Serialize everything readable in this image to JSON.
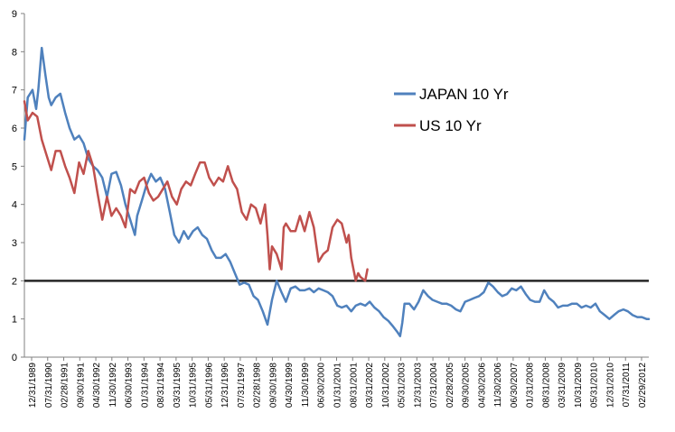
{
  "chart_data": {
    "type": "line",
    "title": "",
    "xlabel": "",
    "ylabel": "",
    "ylim": [
      0,
      9
    ],
    "yticks": [
      0,
      1,
      2,
      3,
      4,
      5,
      6,
      7,
      8,
      9
    ],
    "x_tick_labels": [
      "12/31/1989",
      "07/31/1990",
      "02/28/1991",
      "09/30/1991",
      "04/30/1992",
      "11/30/1992",
      "06/30/1993",
      "01/31/1994",
      "08/31/1994",
      "03/31/1995",
      "10/31/1995",
      "05/31/1996",
      "12/31/1996",
      "07/31/1997",
      "02/28/1998",
      "09/30/1998",
      "04/30/1999",
      "11/30/1999",
      "06/30/2000",
      "01/31/2001",
      "08/31/2001",
      "03/31/2002",
      "10/31/2002",
      "05/31/2003",
      "12/31/2003",
      "07/31/2004",
      "02/28/2005",
      "09/30/2005",
      "04/30/2006",
      "11/30/2006",
      "06/30/2007",
      "01/31/2008",
      "08/31/2008",
      "03/31/2009",
      "10/31/2009",
      "05/31/2010",
      "12/31/2010",
      "07/31/2011",
      "02/29/2012"
    ],
    "grid": false,
    "legend_position": "top-right",
    "reference_line": {
      "y": 2.0,
      "color": "#262626"
    },
    "series": [
      {
        "name": "JAPAN 10 Yr",
        "color": "#4f81bd",
        "x": [
          1989.96,
          1990.08,
          1990.25,
          1990.38,
          1990.46,
          1990.58,
          1990.71,
          1990.83,
          1990.92,
          1991.08,
          1991.25,
          1991.42,
          1991.58,
          1991.75,
          1991.92,
          1992.08,
          1992.25,
          1992.42,
          1992.58,
          1992.75,
          1992.92,
          1993.08,
          1993.25,
          1993.42,
          1993.58,
          1993.75,
          1993.92,
          1994.0,
          1994.17,
          1994.33,
          1994.5,
          1994.67,
          1994.83,
          1995.0,
          1995.17,
          1995.33,
          1995.5,
          1995.67,
          1995.83,
          1996.0,
          1996.17,
          1996.33,
          1996.5,
          1996.67,
          1996.83,
          1997.0,
          1997.17,
          1997.33,
          1997.5,
          1997.67,
          1997.83,
          1998.0,
          1998.17,
          1998.33,
          1998.5,
          1998.67,
          1998.83,
          1999.0,
          1999.17,
          1999.33,
          1999.5,
          1999.67,
          1999.83,
          2000.0,
          2000.17,
          2000.33,
          2000.5,
          2000.67,
          2000.83,
          2001.0,
          2001.17,
          2001.33,
          2001.5,
          2001.67,
          2001.83,
          2002.0,
          2002.17,
          2002.33,
          2002.5,
          2002.67,
          2002.83,
          2003.0,
          2003.17,
          2003.33,
          2003.42,
          2003.5,
          2003.58,
          2003.75,
          2003.92,
          2004.08,
          2004.25,
          2004.42,
          2004.58,
          2004.75,
          2004.92,
          2005.08,
          2005.25,
          2005.42,
          2005.58,
          2005.75,
          2005.92,
          2006.08,
          2006.25,
          2006.42,
          2006.58,
          2006.75,
          2006.92,
          2007.08,
          2007.25,
          2007.42,
          2007.58,
          2007.75,
          2007.92,
          2008.08,
          2008.25,
          2008.42,
          2008.58,
          2008.75,
          2008.92,
          2009.08,
          2009.25,
          2009.42,
          2009.58,
          2009.75,
          2009.92,
          2010.08,
          2010.25,
          2010.42,
          2010.58,
          2010.75,
          2010.92,
          2011.08,
          2011.25,
          2011.42,
          2011.58,
          2011.75,
          2011.92,
          2012.08,
          2012.25,
          2012.33
        ],
        "values": [
          5.7,
          6.8,
          7.0,
          6.5,
          7.0,
          8.1,
          7.4,
          6.8,
          6.6,
          6.8,
          6.9,
          6.4,
          6.0,
          5.7,
          5.8,
          5.6,
          5.2,
          5.0,
          4.9,
          4.7,
          4.2,
          4.8,
          4.85,
          4.5,
          4.0,
          3.6,
          3.2,
          3.7,
          4.1,
          4.5,
          4.8,
          4.6,
          4.7,
          4.4,
          3.8,
          3.2,
          3.0,
          3.3,
          3.1,
          3.3,
          3.4,
          3.2,
          3.1,
          2.8,
          2.6,
          2.6,
          2.7,
          2.5,
          2.2,
          1.9,
          1.95,
          1.9,
          1.6,
          1.5,
          1.2,
          0.85,
          1.5,
          2.0,
          1.7,
          1.45,
          1.8,
          1.85,
          1.75,
          1.75,
          1.8,
          1.7,
          1.8,
          1.75,
          1.7,
          1.6,
          1.35,
          1.3,
          1.35,
          1.2,
          1.35,
          1.4,
          1.35,
          1.45,
          1.3,
          1.2,
          1.05,
          0.95,
          0.8,
          0.65,
          0.55,
          0.9,
          1.4,
          1.4,
          1.25,
          1.45,
          1.75,
          1.6,
          1.5,
          1.45,
          1.4,
          1.4,
          1.35,
          1.25,
          1.2,
          1.45,
          1.5,
          1.55,
          1.6,
          1.7,
          1.95,
          1.85,
          1.7,
          1.6,
          1.65,
          1.8,
          1.75,
          1.85,
          1.65,
          1.5,
          1.45,
          1.45,
          1.75,
          1.55,
          1.45,
          1.3,
          1.35,
          1.35,
          1.4,
          1.4,
          1.3,
          1.35,
          1.3,
          1.4,
          1.2,
          1.1,
          1.0,
          1.1,
          1.2,
          1.25,
          1.2,
          1.1,
          1.05,
          1.05,
          1.0,
          1.0
        ]
      },
      {
        "name": "US 10 Yr",
        "color": "#c0504d",
        "x": [
          1989.96,
          1990.08,
          1990.25,
          1990.42,
          1990.58,
          1990.75,
          1990.92,
          1991.08,
          1991.25,
          1991.42,
          1991.58,
          1991.75,
          1991.92,
          1992.08,
          1992.25,
          1992.42,
          1992.58,
          1992.75,
          1992.92,
          1993.08,
          1993.25,
          1993.42,
          1993.58,
          1993.75,
          1993.92,
          1994.08,
          1994.25,
          1994.42,
          1994.58,
          1994.75,
          1994.92,
          1995.08,
          1995.25,
          1995.42,
          1995.58,
          1995.75,
          1995.92,
          1996.08,
          1996.25,
          1996.42,
          1996.58,
          1996.75,
          1996.92,
          1997.08,
          1997.25,
          1997.42,
          1997.58,
          1997.75,
          1997.92,
          1998.08,
          1998.25,
          1998.42,
          1998.58,
          1998.67,
          1998.75,
          1998.83,
          1999.0,
          1999.17,
          1999.25,
          1999.33,
          1999.5,
          1999.67,
          1999.83,
          2000.0,
          2000.17,
          2000.33,
          2000.5,
          2000.67,
          2000.83,
          2001.0,
          2001.17,
          2001.33,
          2001.5,
          2001.58,
          2001.67,
          2001.75,
          2001.83,
          2001.92,
          2002.0,
          2002.17,
          2002.25
        ],
        "values": [
          6.7,
          6.2,
          6.4,
          6.3,
          5.7,
          5.3,
          4.9,
          5.4,
          5.4,
          5.0,
          4.7,
          4.3,
          5.1,
          4.8,
          5.4,
          5.0,
          4.3,
          3.6,
          4.2,
          3.7,
          3.9,
          3.7,
          3.4,
          4.4,
          4.3,
          4.6,
          4.7,
          4.3,
          4.1,
          4.2,
          4.4,
          4.6,
          4.2,
          4.0,
          4.4,
          4.6,
          4.5,
          4.8,
          5.1,
          5.1,
          4.7,
          4.5,
          4.7,
          4.6,
          5.0,
          4.6,
          4.4,
          3.8,
          3.6,
          4.0,
          3.9,
          3.5,
          4.0,
          3.2,
          2.3,
          2.9,
          2.7,
          2.3,
          3.4,
          3.5,
          3.3,
          3.3,
          3.7,
          3.3,
          3.8,
          3.4,
          2.5,
          2.7,
          2.8,
          3.4,
          3.6,
          3.5,
          3.0,
          3.2,
          2.6,
          2.3,
          2.0,
          2.2,
          2.1,
          2.0,
          2.3
        ]
      }
    ]
  }
}
